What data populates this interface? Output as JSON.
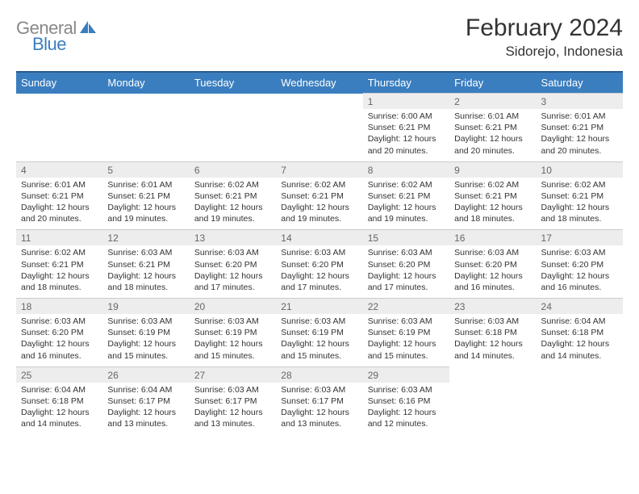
{
  "brand": {
    "part1": "General",
    "part2": "Blue"
  },
  "title": "February 2024",
  "location": "Sidorejo, Indonesia",
  "day_headers": [
    "Sunday",
    "Monday",
    "Tuesday",
    "Wednesday",
    "Thursday",
    "Friday",
    "Saturday"
  ],
  "colors": {
    "header_bg": "#3a7ebf",
    "header_border": "#2a5a8a",
    "daynum_bg": "#ededed",
    "logo_gray": "#888888",
    "logo_blue": "#3a7ebf"
  },
  "weeks": [
    [
      {
        "n": "",
        "sr": "",
        "ss": "",
        "dl": ""
      },
      {
        "n": "",
        "sr": "",
        "ss": "",
        "dl": ""
      },
      {
        "n": "",
        "sr": "",
        "ss": "",
        "dl": ""
      },
      {
        "n": "",
        "sr": "",
        "ss": "",
        "dl": ""
      },
      {
        "n": "1",
        "sr": "Sunrise: 6:00 AM",
        "ss": "Sunset: 6:21 PM",
        "dl": "Daylight: 12 hours and 20 minutes."
      },
      {
        "n": "2",
        "sr": "Sunrise: 6:01 AM",
        "ss": "Sunset: 6:21 PM",
        "dl": "Daylight: 12 hours and 20 minutes."
      },
      {
        "n": "3",
        "sr": "Sunrise: 6:01 AM",
        "ss": "Sunset: 6:21 PM",
        "dl": "Daylight: 12 hours and 20 minutes."
      }
    ],
    [
      {
        "n": "4",
        "sr": "Sunrise: 6:01 AM",
        "ss": "Sunset: 6:21 PM",
        "dl": "Daylight: 12 hours and 20 minutes."
      },
      {
        "n": "5",
        "sr": "Sunrise: 6:01 AM",
        "ss": "Sunset: 6:21 PM",
        "dl": "Daylight: 12 hours and 19 minutes."
      },
      {
        "n": "6",
        "sr": "Sunrise: 6:02 AM",
        "ss": "Sunset: 6:21 PM",
        "dl": "Daylight: 12 hours and 19 minutes."
      },
      {
        "n": "7",
        "sr": "Sunrise: 6:02 AM",
        "ss": "Sunset: 6:21 PM",
        "dl": "Daylight: 12 hours and 19 minutes."
      },
      {
        "n": "8",
        "sr": "Sunrise: 6:02 AM",
        "ss": "Sunset: 6:21 PM",
        "dl": "Daylight: 12 hours and 19 minutes."
      },
      {
        "n": "9",
        "sr": "Sunrise: 6:02 AM",
        "ss": "Sunset: 6:21 PM",
        "dl": "Daylight: 12 hours and 18 minutes."
      },
      {
        "n": "10",
        "sr": "Sunrise: 6:02 AM",
        "ss": "Sunset: 6:21 PM",
        "dl": "Daylight: 12 hours and 18 minutes."
      }
    ],
    [
      {
        "n": "11",
        "sr": "Sunrise: 6:02 AM",
        "ss": "Sunset: 6:21 PM",
        "dl": "Daylight: 12 hours and 18 minutes."
      },
      {
        "n": "12",
        "sr": "Sunrise: 6:03 AM",
        "ss": "Sunset: 6:21 PM",
        "dl": "Daylight: 12 hours and 18 minutes."
      },
      {
        "n": "13",
        "sr": "Sunrise: 6:03 AM",
        "ss": "Sunset: 6:20 PM",
        "dl": "Daylight: 12 hours and 17 minutes."
      },
      {
        "n": "14",
        "sr": "Sunrise: 6:03 AM",
        "ss": "Sunset: 6:20 PM",
        "dl": "Daylight: 12 hours and 17 minutes."
      },
      {
        "n": "15",
        "sr": "Sunrise: 6:03 AM",
        "ss": "Sunset: 6:20 PM",
        "dl": "Daylight: 12 hours and 17 minutes."
      },
      {
        "n": "16",
        "sr": "Sunrise: 6:03 AM",
        "ss": "Sunset: 6:20 PM",
        "dl": "Daylight: 12 hours and 16 minutes."
      },
      {
        "n": "17",
        "sr": "Sunrise: 6:03 AM",
        "ss": "Sunset: 6:20 PM",
        "dl": "Daylight: 12 hours and 16 minutes."
      }
    ],
    [
      {
        "n": "18",
        "sr": "Sunrise: 6:03 AM",
        "ss": "Sunset: 6:20 PM",
        "dl": "Daylight: 12 hours and 16 minutes."
      },
      {
        "n": "19",
        "sr": "Sunrise: 6:03 AM",
        "ss": "Sunset: 6:19 PM",
        "dl": "Daylight: 12 hours and 15 minutes."
      },
      {
        "n": "20",
        "sr": "Sunrise: 6:03 AM",
        "ss": "Sunset: 6:19 PM",
        "dl": "Daylight: 12 hours and 15 minutes."
      },
      {
        "n": "21",
        "sr": "Sunrise: 6:03 AM",
        "ss": "Sunset: 6:19 PM",
        "dl": "Daylight: 12 hours and 15 minutes."
      },
      {
        "n": "22",
        "sr": "Sunrise: 6:03 AM",
        "ss": "Sunset: 6:19 PM",
        "dl": "Daylight: 12 hours and 15 minutes."
      },
      {
        "n": "23",
        "sr": "Sunrise: 6:03 AM",
        "ss": "Sunset: 6:18 PM",
        "dl": "Daylight: 12 hours and 14 minutes."
      },
      {
        "n": "24",
        "sr": "Sunrise: 6:04 AM",
        "ss": "Sunset: 6:18 PM",
        "dl": "Daylight: 12 hours and 14 minutes."
      }
    ],
    [
      {
        "n": "25",
        "sr": "Sunrise: 6:04 AM",
        "ss": "Sunset: 6:18 PM",
        "dl": "Daylight: 12 hours and 14 minutes."
      },
      {
        "n": "26",
        "sr": "Sunrise: 6:04 AM",
        "ss": "Sunset: 6:17 PM",
        "dl": "Daylight: 12 hours and 13 minutes."
      },
      {
        "n": "27",
        "sr": "Sunrise: 6:03 AM",
        "ss": "Sunset: 6:17 PM",
        "dl": "Daylight: 12 hours and 13 minutes."
      },
      {
        "n": "28",
        "sr": "Sunrise: 6:03 AM",
        "ss": "Sunset: 6:17 PM",
        "dl": "Daylight: 12 hours and 13 minutes."
      },
      {
        "n": "29",
        "sr": "Sunrise: 6:03 AM",
        "ss": "Sunset: 6:16 PM",
        "dl": "Daylight: 12 hours and 12 minutes."
      },
      {
        "n": "",
        "sr": "",
        "ss": "",
        "dl": ""
      },
      {
        "n": "",
        "sr": "",
        "ss": "",
        "dl": ""
      }
    ]
  ]
}
